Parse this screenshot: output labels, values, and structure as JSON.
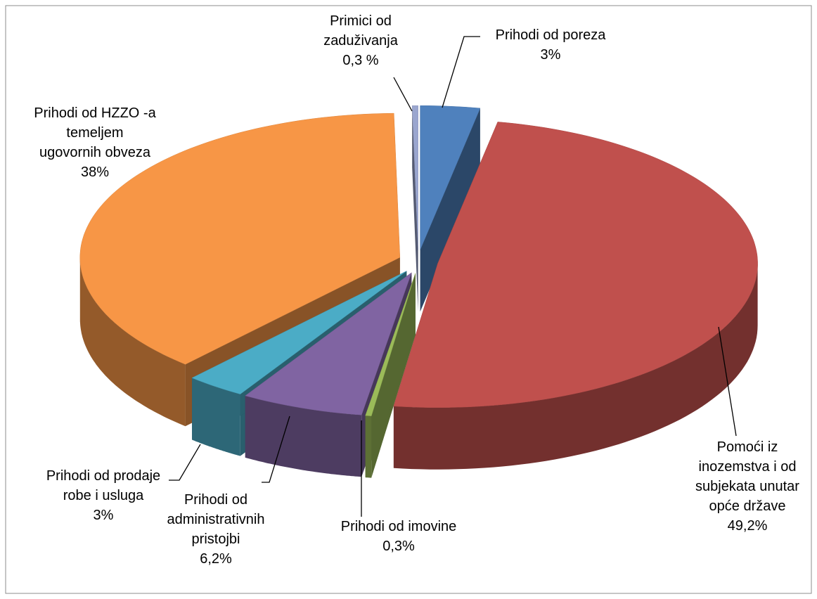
{
  "chart_data": {
    "type": "pie3d",
    "categories": [
      "Prihodi od poreza",
      "Pomoći iz\ninozemstva  i od\nsubjekata unutar\nopće države",
      "Prihodi od imovine",
      "Prihodi od\nadministrativnih\npristojbi",
      "Prihodi od prodaje\nrobe i usluga",
      "Prihodi  od HZZO -a\ntemeljem\nugovornih obveza",
      "Primici od\nzaduživanja"
    ],
    "values": [
      3,
      49.2,
      0.3,
      6.2,
      3,
      38,
      0.3
    ],
    "value_labels": [
      "3%",
      "49,2%",
      "0,3%",
      "6,2%",
      "3%",
      "38%",
      "0,3 %"
    ],
    "colors": [
      "#4f81bd",
      "#c0504d",
      "#9bbb59",
      "#8064a2",
      "#4bacc6",
      "#f79646",
      "#9aa6cf"
    ]
  }
}
